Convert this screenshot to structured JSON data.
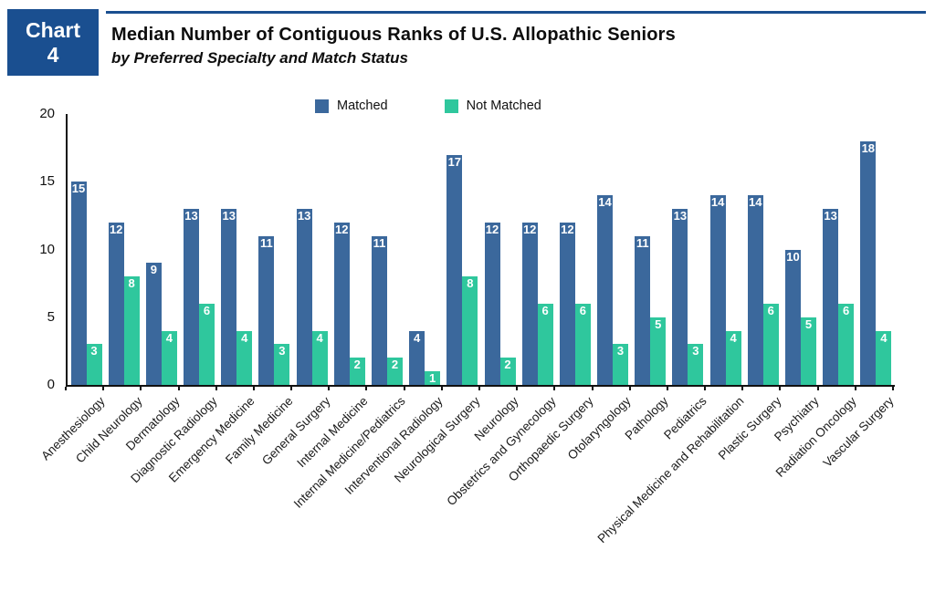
{
  "header": {
    "badge_line1": "Chart",
    "badge_line2": "4",
    "title": "Median Number of Contiguous Ranks of U.S. Allopathic Seniors",
    "subtitle": "by Preferred Specialty and Match Status"
  },
  "colors": {
    "navy": "#1a4f90",
    "matched": "#3b689c",
    "not_matched": "#2fc79d",
    "axis": "#111111",
    "value_label": "#ffffff"
  },
  "chart_data": {
    "type": "bar",
    "title": "Median Number of Contiguous Ranks of U.S. Allopathic Seniors by Preferred Specialty and Match Status",
    "xlabel": "",
    "ylabel": "",
    "ylim": [
      0,
      20
    ],
    "yticks": [
      0,
      5,
      10,
      15,
      20
    ],
    "grid": false,
    "legend_position": "top",
    "categories": [
      "Anesthesiology",
      "Child Neurology",
      "Dermatology",
      "Diagnostic Radiology",
      "Emergency Medicine",
      "Family Medicine",
      "General Surgery",
      "Internal Medicine",
      "Internal Medicine/Pediatrics",
      "Interventional Radiology",
      "Neurological Surgery",
      "Neurology",
      "Obstetrics and Gynecology",
      "Orthopaedic Surgery",
      "Otolaryngology",
      "Pathology",
      "Pediatrics",
      "Physical Medicine and Rehabilitation",
      "Plastic Surgery",
      "Psychiatry",
      "Radiation Oncology",
      "Vascular Surgery"
    ],
    "series": [
      {
        "name": "Matched",
        "color": "#3b689c",
        "values": [
          15,
          12,
          9,
          13,
          13,
          11,
          13,
          12,
          11,
          4,
          17,
          12,
          12,
          12,
          14,
          11,
          13,
          14,
          14,
          10,
          13,
          18
        ]
      },
      {
        "name": "Not Matched",
        "color": "#2fc79d",
        "values": [
          3,
          8,
          4,
          6,
          4,
          3,
          4,
          2,
          2,
          1,
          8,
          2,
          6,
          6,
          3,
          5,
          3,
          4,
          6,
          5,
          6,
          4
        ]
      }
    ]
  }
}
